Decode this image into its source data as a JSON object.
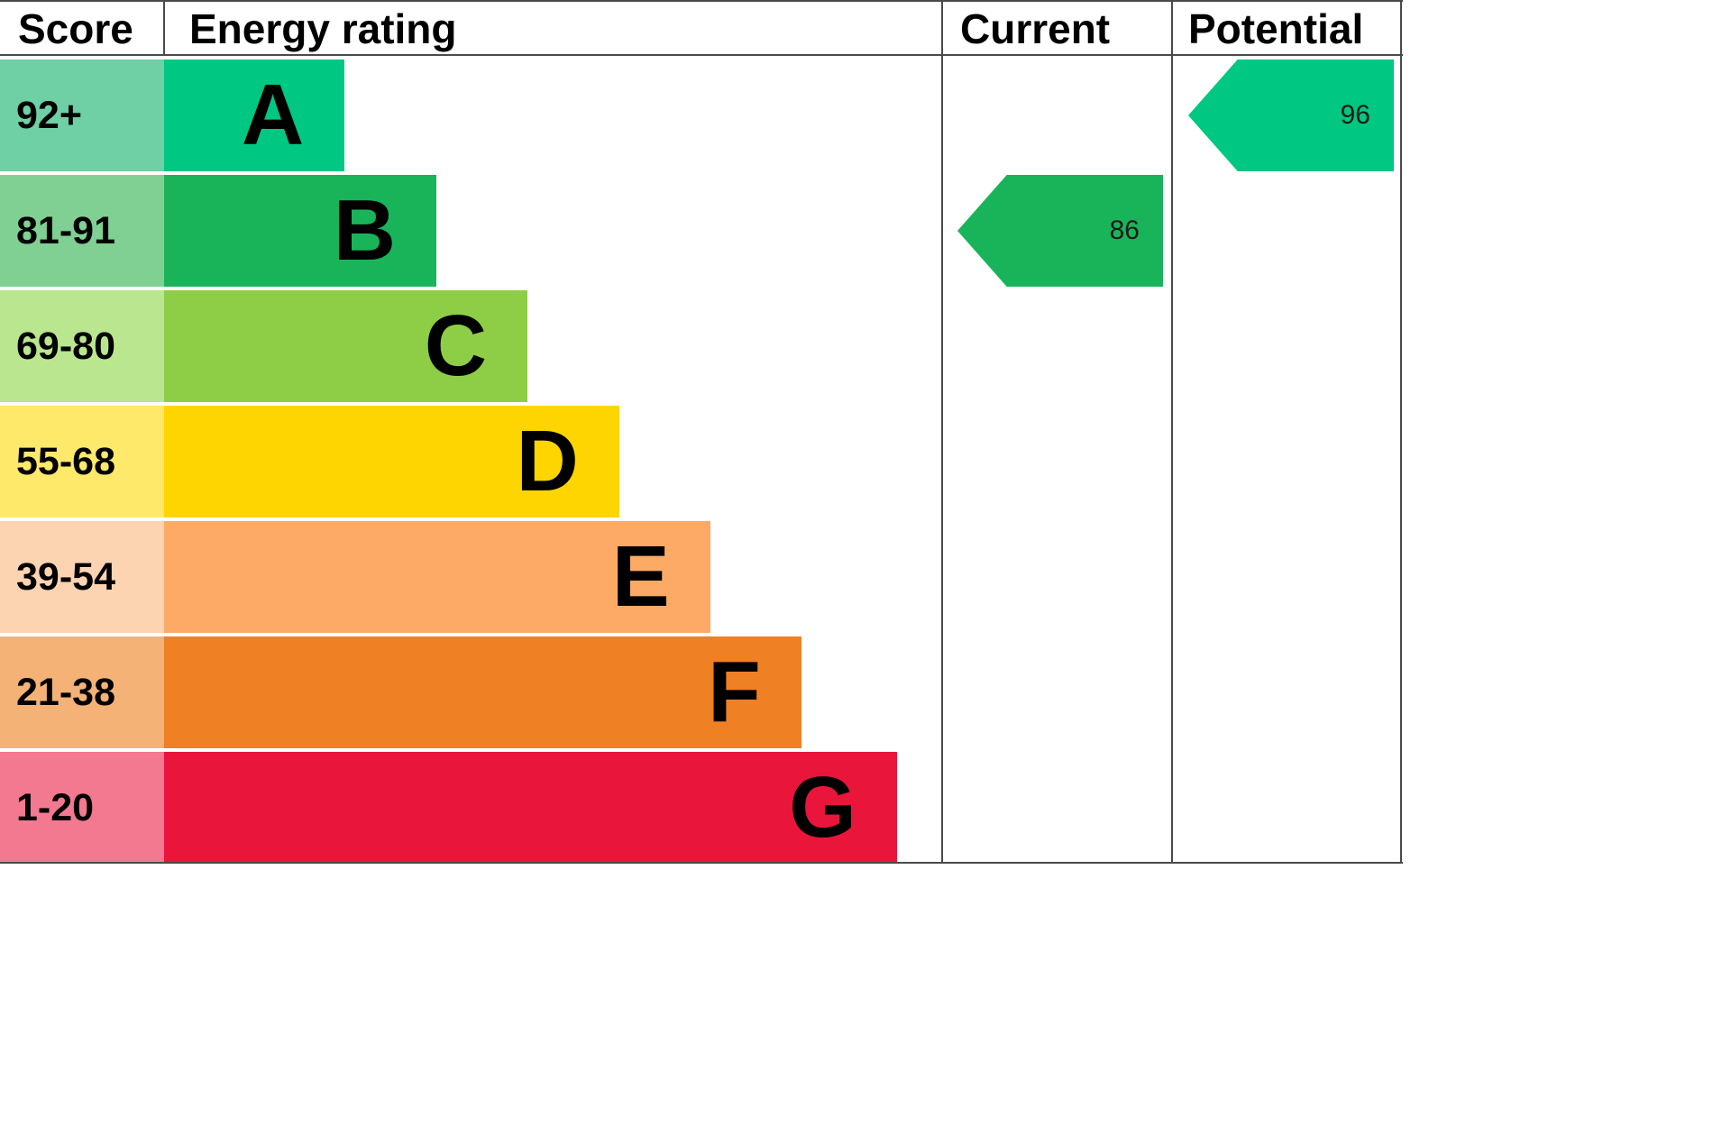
{
  "header": {
    "score": "Score",
    "energy_rating": "Energy rating",
    "current": "Current",
    "potential": "Potential"
  },
  "chart_data": {
    "type": "bar",
    "subtype": "epc-energy-rating",
    "title": "Energy rating",
    "bands": [
      {
        "letter": "A",
        "range": "92+",
        "color": "#00c781",
        "tint": "#6fcfa5",
        "width_pct": 23.2
      },
      {
        "letter": "B",
        "range": "81-91",
        "color": "#19b459",
        "tint": "#7fd092",
        "width_pct": 35.0
      },
      {
        "letter": "C",
        "range": "69-80",
        "color": "#8dce46",
        "tint": "#b9e68f",
        "width_pct": 46.7
      },
      {
        "letter": "D",
        "range": "55-68",
        "color": "#ffd500",
        "tint": "#ffe96b",
        "width_pct": 58.5
      },
      {
        "letter": "E",
        "range": "39-54",
        "color": "#fcaa65",
        "tint": "#fdd4b2",
        "width_pct": 70.2
      },
      {
        "letter": "F",
        "range": "21-38",
        "color": "#ef8023",
        "tint": "#f4b277",
        "width_pct": 81.9
      },
      {
        "letter": "G",
        "range": "1-20",
        "color": "#e9153b",
        "tint": "#f2798f",
        "width_pct": 94.2
      }
    ],
    "current": {
      "value": 86,
      "band": "B",
      "color": "#19b459"
    },
    "potential": {
      "value": 96,
      "band": "A",
      "color": "#00c781"
    }
  }
}
